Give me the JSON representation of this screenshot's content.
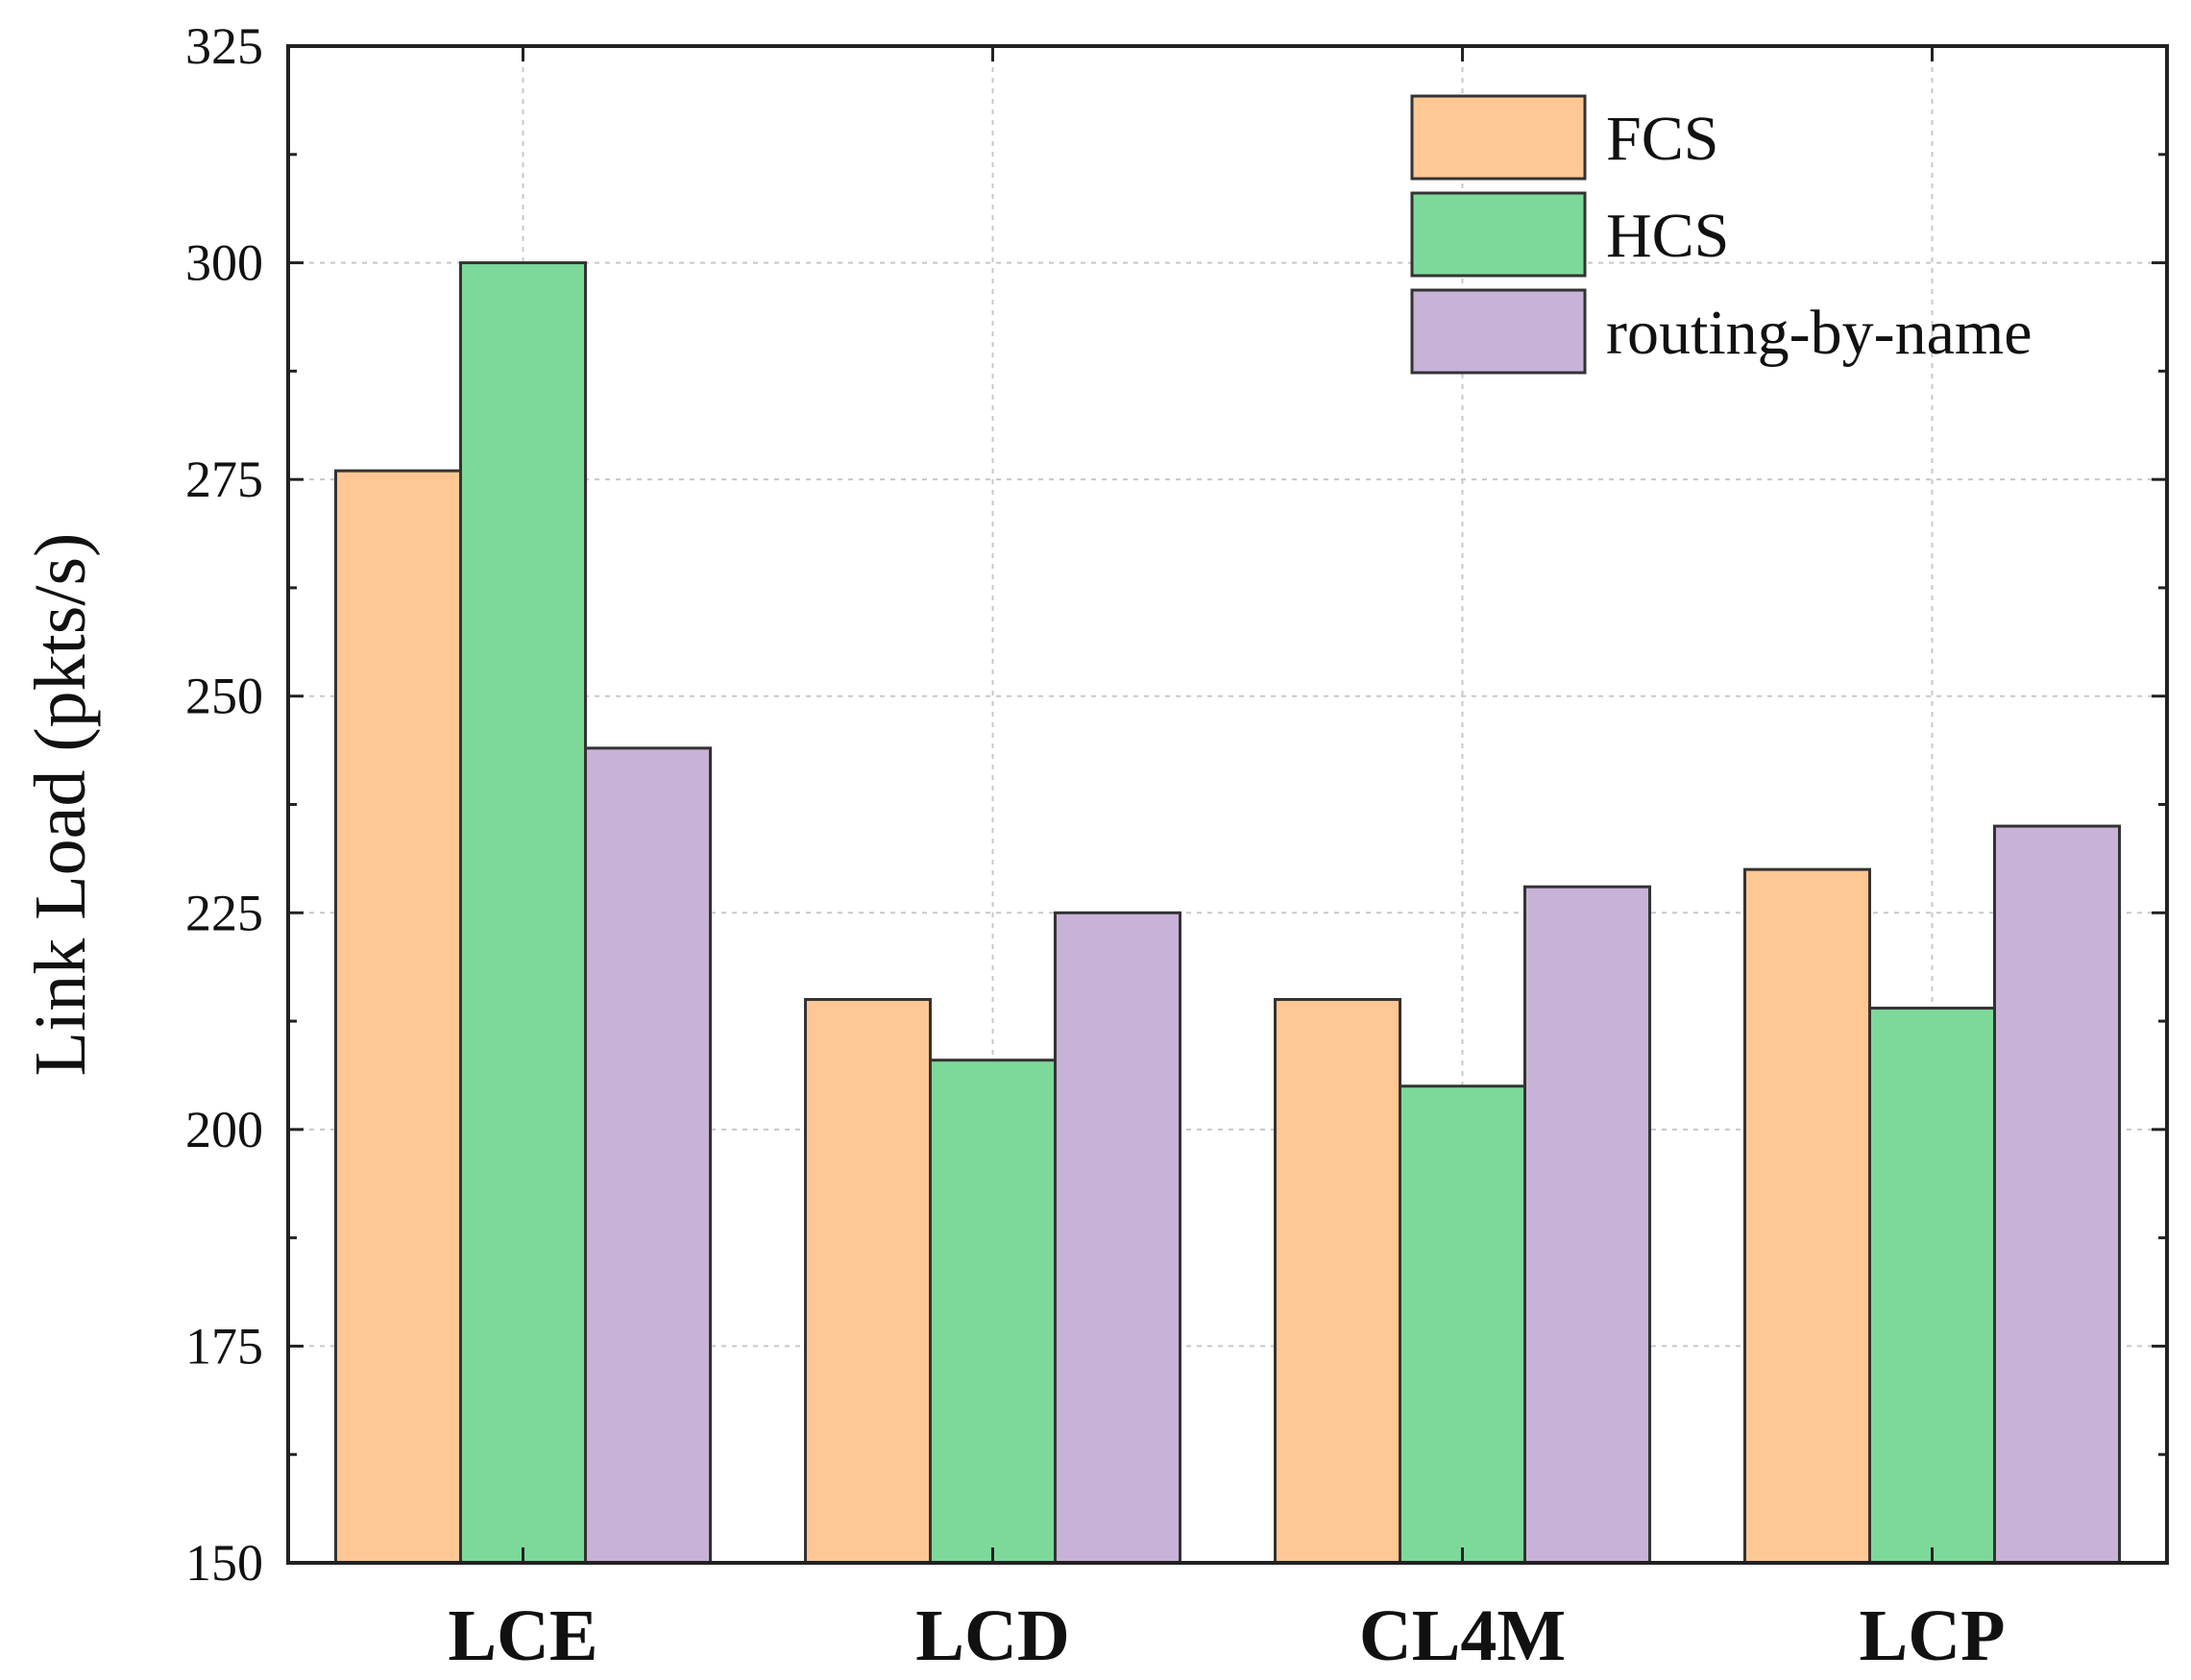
{
  "chart_data": {
    "type": "bar",
    "title": "",
    "xlabel": "",
    "ylabel": "Link Load (pkts/s)",
    "ylim": [
      150,
      325
    ],
    "yticks": [
      150,
      175,
      200,
      225,
      250,
      275,
      300,
      325
    ],
    "categories": [
      "LCE",
      "LCD",
      "CL4M",
      "LCP"
    ],
    "series": [
      {
        "name": "FCS",
        "color": "#FEC794",
        "values": [
          276,
          215,
          215,
          230
        ]
      },
      {
        "name": "HCS",
        "color": "#7DD99A",
        "values": [
          300,
          208,
          205,
          214
        ]
      },
      {
        "name": "routing-by-name",
        "color": "#C8B2D8",
        "values": [
          244,
          225,
          228,
          235
        ]
      }
    ],
    "grid": true,
    "legend_position": "top-right"
  }
}
